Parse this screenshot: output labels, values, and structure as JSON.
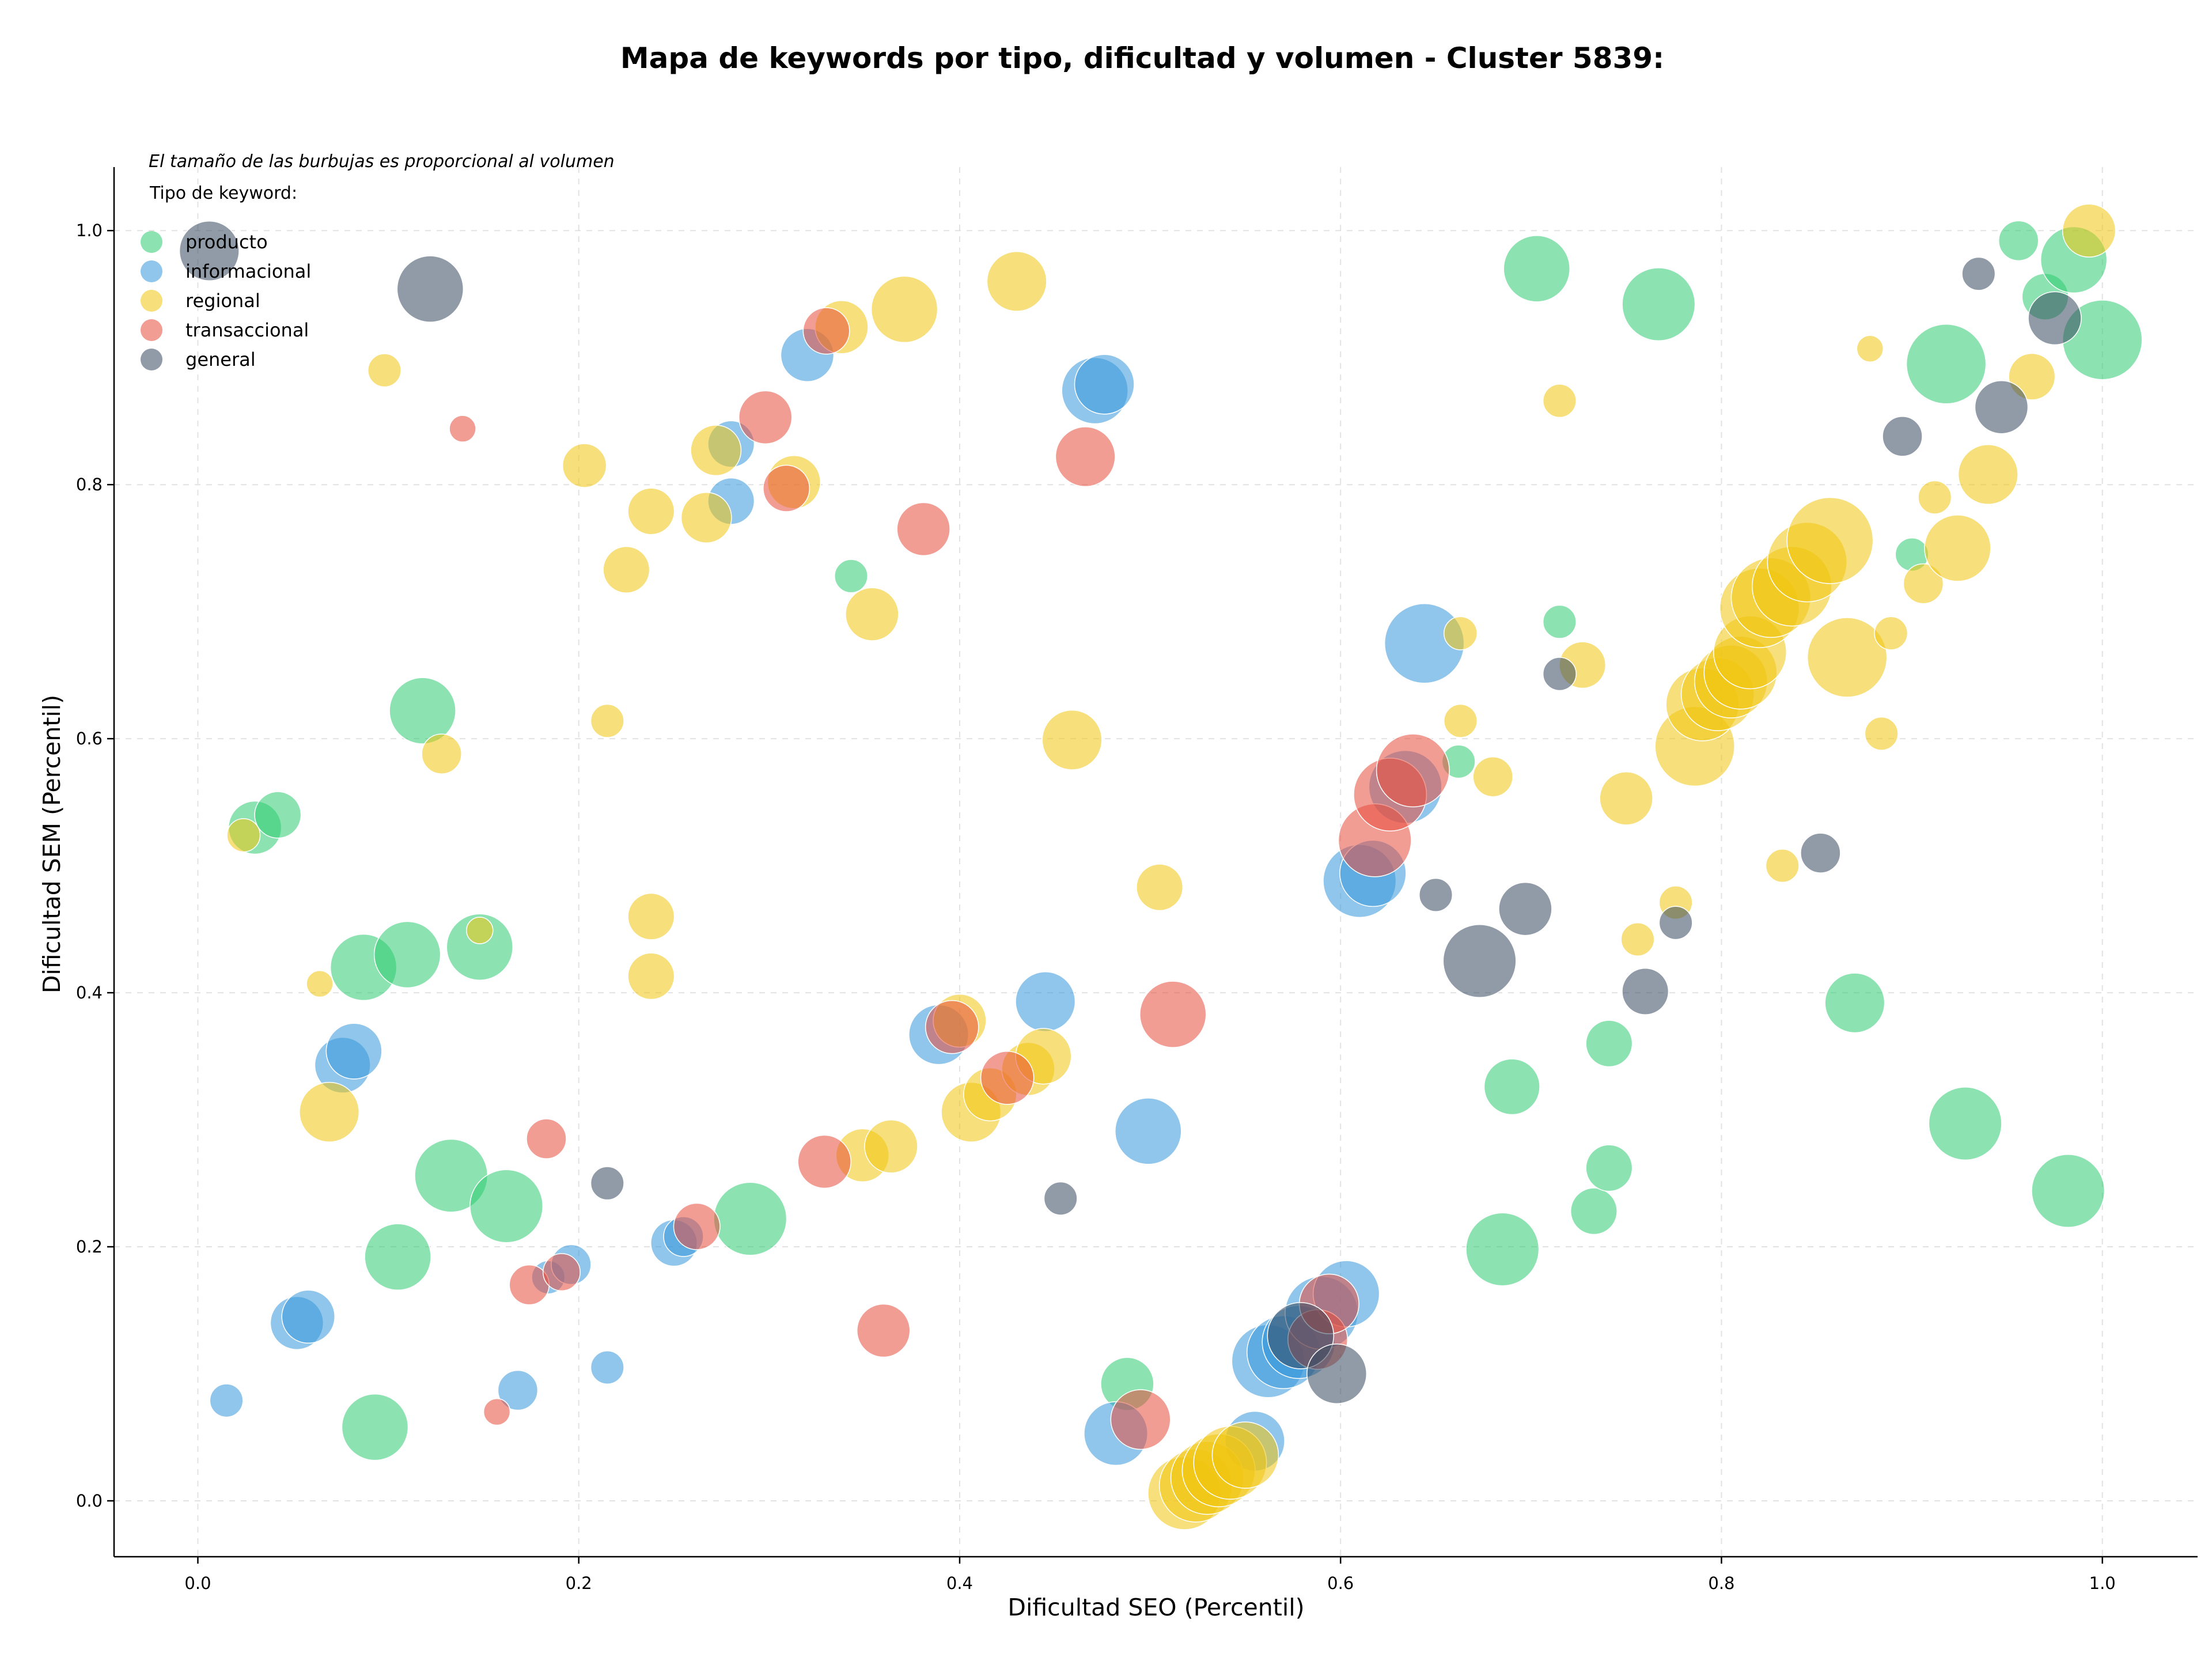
{
  "chart_data": {
    "type": "scatter",
    "title": "Mapa de keywords por tipo, dificultad y volumen - Cluster 5839:",
    "xlabel": "Dificultad SEO (Percentil)",
    "ylabel": "Dificultad SEM (Percentil)",
    "xlim": [
      -0.044,
      1.05
    ],
    "ylim": [
      -0.044,
      1.05
    ],
    "xticks": [
      "0.0",
      "0.2",
      "0.4",
      "0.6",
      "0.8",
      "1.0"
    ],
    "yticks": [
      "0.0",
      "0.2",
      "0.4",
      "0.6",
      "0.8",
      "1.0"
    ],
    "grid": true,
    "legend_placement": "top-left",
    "note": "El tamaño de las burbujas es proporcional al volumen",
    "legend_title": "Tipo de keyword:",
    "bubble_opacity": 0.55,
    "series": [
      {
        "name": "producto",
        "color": "#2ecc71",
        "points": [
          [
            0.03,
            0.53,
            4
          ],
          [
            0.042,
            0.54,
            3.5
          ],
          [
            0.087,
            0.42,
            5
          ],
          [
            0.11,
            0.43,
            5
          ],
          [
            0.118,
            0.622,
            5
          ],
          [
            0.148,
            0.436,
            5
          ],
          [
            0.133,
            0.256,
            5.5
          ],
          [
            0.162,
            0.232,
            5.5
          ],
          [
            0.105,
            0.192,
            5
          ],
          [
            0.093,
            0.058,
            5
          ],
          [
            0.29,
            0.222,
            5.5
          ],
          [
            0.343,
            0.728,
            2.5
          ],
          [
            0.488,
            0.092,
            4
          ],
          [
            0.662,
            0.582,
            2.5
          ],
          [
            0.685,
            0.198,
            5.5
          ],
          [
            0.69,
            0.326,
            4.2
          ],
          [
            0.703,
            0.97,
            5
          ],
          [
            0.715,
            0.692,
            2.5
          ],
          [
            0.733,
            0.228,
            3.5
          ],
          [
            0.741,
            0.262,
            3.5
          ],
          [
            0.741,
            0.36,
            3.5
          ],
          [
            0.767,
            0.942,
            5.5
          ],
          [
            0.87,
            0.392,
            4.5
          ],
          [
            0.9,
            0.745,
            2.5
          ],
          [
            0.918,
            0.895,
            6
          ],
          [
            0.928,
            0.297,
            5.5
          ],
          [
            0.956,
            0.992,
            3
          ],
          [
            0.97,
            0.948,
            3.5
          ],
          [
            0.985,
            0.977,
            5
          ],
          [
            0.982,
            0.244,
            5.5
          ],
          [
            1.0,
            0.914,
            6
          ]
        ]
      },
      {
        "name": "informacional",
        "color": "#3498db",
        "points": [
          [
            0.015,
            0.079,
            2.5
          ],
          [
            0.052,
            0.14,
            4
          ],
          [
            0.058,
            0.145,
            4
          ],
          [
            0.076,
            0.343,
            4.2
          ],
          [
            0.082,
            0.354,
            4.2
          ],
          [
            0.168,
            0.087,
            3
          ],
          [
            0.184,
            0.176,
            2.5
          ],
          [
            0.196,
            0.186,
            3
          ],
          [
            0.215,
            0.105,
            2.5
          ],
          [
            0.25,
            0.203,
            3.5
          ],
          [
            0.255,
            0.208,
            3
          ],
          [
            0.28,
            0.787,
            3.5
          ],
          [
            0.28,
            0.832,
            3.5
          ],
          [
            0.32,
            0.902,
            4
          ],
          [
            0.389,
            0.367,
            4.5
          ],
          [
            0.445,
            0.393,
            4.5
          ],
          [
            0.471,
            0.874,
            5
          ],
          [
            0.476,
            0.879,
            4.5
          ],
          [
            0.499,
            0.291,
            5
          ],
          [
            0.482,
            0.053,
            4.8
          ],
          [
            0.555,
            0.047,
            4.5
          ],
          [
            0.562,
            0.11,
            5.5
          ],
          [
            0.57,
            0.117,
            5.5
          ],
          [
            0.578,
            0.125,
            5.5
          ],
          [
            0.59,
            0.148,
            5.5
          ],
          [
            0.603,
            0.163,
            5
          ],
          [
            0.61,
            0.488,
            5.5
          ],
          [
            0.617,
            0.494,
            5
          ],
          [
            0.634,
            0.562,
            5.5
          ],
          [
            0.644,
            0.675,
            6
          ]
        ]
      },
      {
        "name": "regional",
        "color": "#f1c40f",
        "points": [
          [
            0.024,
            0.524,
            2.5
          ],
          [
            0.064,
            0.407,
            2
          ],
          [
            0.069,
            0.306,
            4.5
          ],
          [
            0.098,
            0.89,
            2.5
          ],
          [
            0.128,
            0.588,
            3
          ],
          [
            0.148,
            0.449,
            2
          ],
          [
            0.203,
            0.815,
            3.3
          ],
          [
            0.215,
            0.614,
            2.5
          ],
          [
            0.225,
            0.733,
            3.5
          ],
          [
            0.238,
            0.413,
            3.5
          ],
          [
            0.238,
            0.46,
            3.5
          ],
          [
            0.238,
            0.779,
            3.5
          ],
          [
            0.267,
            0.774,
            3.8
          ],
          [
            0.272,
            0.827,
            3.8
          ],
          [
            0.313,
            0.802,
            4
          ],
          [
            0.338,
            0.924,
            4
          ],
          [
            0.349,
            0.272,
            4
          ],
          [
            0.364,
            0.279,
            4
          ],
          [
            0.354,
            0.698,
            4
          ],
          [
            0.371,
            0.938,
            5
          ],
          [
            0.4,
            0.378,
            4
          ],
          [
            0.406,
            0.306,
            4.5
          ],
          [
            0.416,
            0.32,
            4
          ],
          [
            0.436,
            0.34,
            4
          ],
          [
            0.444,
            0.35,
            4.2
          ],
          [
            0.43,
            0.96,
            4.5
          ],
          [
            0.459,
            0.599,
            4.5
          ],
          [
            0.505,
            0.483,
            3.5
          ],
          [
            0.518,
            0.006,
            5.5
          ],
          [
            0.524,
            0.012,
            5.5
          ],
          [
            0.53,
            0.018,
            5.5
          ],
          [
            0.536,
            0.024,
            5.5
          ],
          [
            0.542,
            0.03,
            5.5
          ],
          [
            0.55,
            0.036,
            5
          ],
          [
            0.663,
            0.683,
            2.5
          ],
          [
            0.663,
            0.614,
            2.5
          ],
          [
            0.68,
            0.57,
            3
          ],
          [
            0.727,
            0.658,
            3.5
          ],
          [
            0.715,
            0.866,
            2.5
          ],
          [
            0.75,
            0.553,
            4
          ],
          [
            0.756,
            0.442,
            2.5
          ],
          [
            0.776,
            0.471,
            2.5
          ],
          [
            0.786,
            0.594,
            6
          ],
          [
            0.79,
            0.627,
            5.5
          ],
          [
            0.798,
            0.635,
            5.5
          ],
          [
            0.805,
            0.645,
            5.5
          ],
          [
            0.81,
            0.652,
            5.5
          ],
          [
            0.815,
            0.668,
            5.5
          ],
          [
            0.82,
            0.703,
            6
          ],
          [
            0.826,
            0.711,
            6
          ],
          [
            0.832,
            0.5,
            2.5
          ],
          [
            0.837,
            0.72,
            6
          ],
          [
            0.845,
            0.739,
            6
          ],
          [
            0.857,
            0.756,
            6.5
          ],
          [
            0.866,
            0.664,
            6
          ],
          [
            0.878,
            0.907,
            2
          ],
          [
            0.884,
            0.604,
            2.5
          ],
          [
            0.889,
            0.683,
            2.5
          ],
          [
            0.906,
            0.722,
            3
          ],
          [
            0.912,
            0.79,
            2.5
          ],
          [
            0.924,
            0.75,
            5
          ],
          [
            0.94,
            0.808,
            4.5
          ],
          [
            0.963,
            0.885,
            3.5
          ],
          [
            0.993,
            1.0,
            4
          ]
        ]
      },
      {
        "name": "transaccional",
        "color": "#e74c3c",
        "points": [
          [
            0.139,
            0.844,
            2
          ],
          [
            0.157,
            0.07,
            2
          ],
          [
            0.174,
            0.17,
            3
          ],
          [
            0.183,
            0.285,
            3
          ],
          [
            0.191,
            0.18,
            2.8
          ],
          [
            0.262,
            0.216,
            3.5
          ],
          [
            0.298,
            0.853,
            4
          ],
          [
            0.309,
            0.797,
            3.5
          ],
          [
            0.33,
            0.921,
            3.5
          ],
          [
            0.329,
            0.267,
            4
          ],
          [
            0.36,
            0.134,
            4
          ],
          [
            0.381,
            0.765,
            4
          ],
          [
            0.396,
            0.373,
            4
          ],
          [
            0.425,
            0.333,
            4
          ],
          [
            0.466,
            0.822,
            4.5
          ],
          [
            0.495,
            0.064,
            4.5
          ],
          [
            0.512,
            0.383,
            5
          ],
          [
            0.588,
            0.127,
            4.5
          ],
          [
            0.594,
            0.155,
            4.5
          ],
          [
            0.618,
            0.52,
            5.5
          ],
          [
            0.626,
            0.556,
            5.5
          ],
          [
            0.638,
            0.575,
            5.5
          ]
        ]
      },
      {
        "name": "general",
        "color": "#34495e",
        "points": [
          [
            0.006,
            0.984,
            4.5
          ],
          [
            0.122,
            0.954,
            5
          ],
          [
            0.215,
            0.25,
            2.5
          ],
          [
            0.453,
            0.238,
            2.5
          ],
          [
            0.579,
            0.13,
            5
          ],
          [
            0.598,
            0.1,
            4.5
          ],
          [
            0.65,
            0.477,
            2.5
          ],
          [
            0.673,
            0.425,
            5.5
          ],
          [
            0.697,
            0.466,
            4
          ],
          [
            0.715,
            0.651,
            2.5
          ],
          [
            0.76,
            0.401,
            3.5
          ],
          [
            0.776,
            0.455,
            2.5
          ],
          [
            0.852,
            0.51,
            3
          ],
          [
            0.895,
            0.838,
            3
          ],
          [
            0.935,
            0.966,
            2.5
          ],
          [
            0.947,
            0.861,
            4
          ],
          [
            0.975,
            0.931,
            4
          ]
        ]
      }
    ]
  }
}
